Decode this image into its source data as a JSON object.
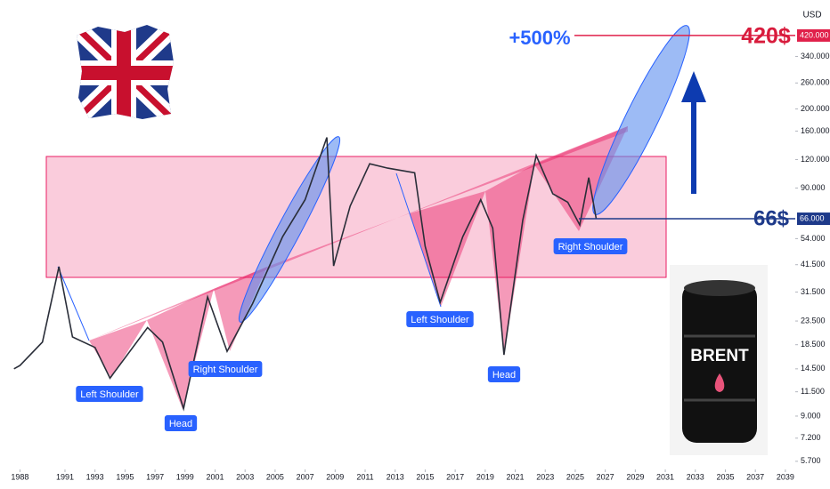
{
  "chart_data": {
    "type": "line",
    "y_axis_unit": "USD",
    "log_scale": true,
    "grid": false,
    "color": "#2a2e39",
    "x": [
      1987.6,
      1988.0,
      1989.5,
      1990.6,
      1991.5,
      1993.0,
      1994.0,
      1996.5,
      1997.5,
      1998.9,
      2000.5,
      2001.8,
      2003.5,
      2005.5,
      2007.0,
      2008.45,
      2008.9,
      2010.0,
      2011.3,
      2012.5,
      2014.3,
      2015.0,
      2016.0,
      2017.5,
      2018.7,
      2019.5,
      2020.25,
      2021.5,
      2022.4,
      2023.5,
      2024.5,
      2025.3,
      2025.9,
      2026.4
    ],
    "values": [
      14.5,
      15,
      19,
      40.7,
      20,
      18,
      13.2,
      22,
      19,
      9.7,
      30,
      17.3,
      28,
      55,
      80,
      150,
      41,
      75,
      115,
      110,
      105,
      50,
      28.4,
      55,
      80,
      60,
      16.7,
      65,
      125,
      85,
      78,
      62,
      100,
      66
    ],
    "xlim": [
      1986.67,
      2039.66
    ],
    "xticks": [
      1988,
      1991,
      1993,
      1995,
      1997,
      1999,
      2001,
      2003,
      2005,
      2007,
      2009,
      2011,
      2013,
      2015,
      2017,
      2019,
      2021,
      2023,
      2025,
      2027,
      2029,
      2031,
      2033,
      2035,
      2037,
      2039
    ],
    "ylim": [
      5.25,
      601
    ],
    "yticks": [
      {
        "value": 5.7,
        "label": "5.700"
      },
      {
        "value": 7.2,
        "label": "7.200"
      },
      {
        "value": 9,
        "label": "9.000"
      },
      {
        "value": 11.5,
        "label": "11.500"
      },
      {
        "value": 14.5,
        "label": "14.500"
      },
      {
        "value": 18.5,
        "label": "18.500"
      },
      {
        "value": 23.5,
        "label": "23.500"
      },
      {
        "value": 31.5,
        "label": "31.500"
      },
      {
        "value": 41.5,
        "label": "41.500"
      },
      {
        "value": 54,
        "label": "54.000"
      },
      {
        "value": 90,
        "label": "90.000"
      },
      {
        "value": 120,
        "label": "120.000"
      },
      {
        "value": 160,
        "label": "160.000"
      },
      {
        "value": 200,
        "label": "200.000"
      },
      {
        "value": 260,
        "label": "260.000"
      },
      {
        "value": 340,
        "label": "340.000"
      }
    ],
    "price_markers": [
      {
        "value": 420,
        "label": "420.000",
        "color": "#e0204a"
      },
      {
        "value": 66,
        "label": "66.000",
        "color": "#1e3a8a"
      }
    ],
    "annotations": [
      "+500%",
      "420$",
      "66$",
      "Left Shoulder",
      "Head",
      "Right Shoulder",
      "Left Shoulder",
      "Head",
      "Right Shoulder",
      "BRENT"
    ]
  }
}
